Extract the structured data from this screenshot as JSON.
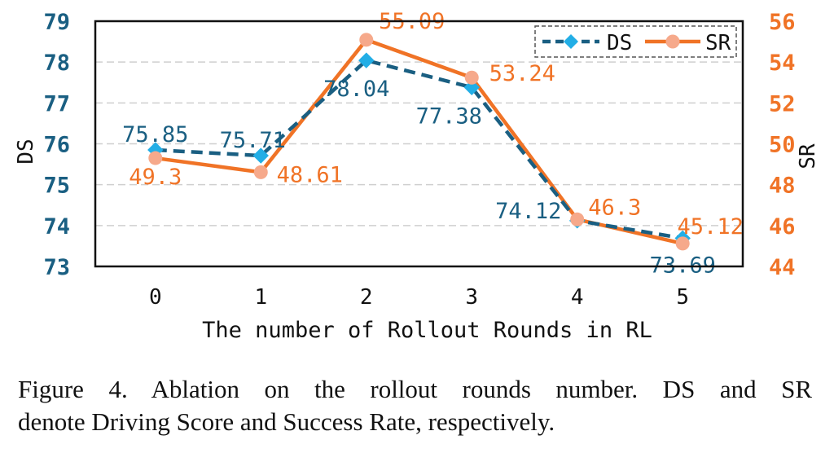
{
  "chart_data": {
    "type": "line",
    "x": [
      0,
      1,
      2,
      3,
      4,
      5
    ],
    "categories": [
      "0",
      "1",
      "2",
      "3",
      "4",
      "5"
    ],
    "xlabel": "The number of Rollout Rounds in RL",
    "ylabel_left": "DS",
    "ylabel_right": "SR",
    "ylim_left": [
      73,
      79
    ],
    "ylim_right": [
      44,
      56
    ],
    "yticks_left": [
      "73",
      "74",
      "75",
      "76",
      "77",
      "78",
      "79"
    ],
    "yticks_right": [
      "44",
      "46",
      "48",
      "50",
      "52",
      "54",
      "56"
    ],
    "grid": "horizontal dashed",
    "legend_position": "top-right",
    "series": [
      {
        "name": "DS",
        "axis": "left",
        "color": "#1a5f82",
        "marker_color": "#22aee6",
        "style": "dashed",
        "marker": "diamond",
        "values": [
          75.85,
          75.71,
          78.04,
          77.38,
          74.12,
          73.69
        ],
        "labels": [
          "75.85",
          "75.71",
          "78.04",
          "77.38",
          "74.12",
          "73.69"
        ]
      },
      {
        "name": "SR",
        "axis": "right",
        "color": "#f07326",
        "marker_color": "#f6a98b",
        "style": "solid",
        "marker": "circle",
        "values": [
          49.3,
          48.61,
          55.09,
          53.24,
          46.3,
          45.12
        ],
        "labels": [
          "49.3",
          "48.61",
          "55.09",
          "53.24",
          "46.3",
          "45.12"
        ]
      }
    ]
  },
  "caption": {
    "line1": "Figure 4.  Ablation on the rollout rounds number.  DS and SR",
    "line2": "denote Driving Score and Success Rate, respectively."
  }
}
